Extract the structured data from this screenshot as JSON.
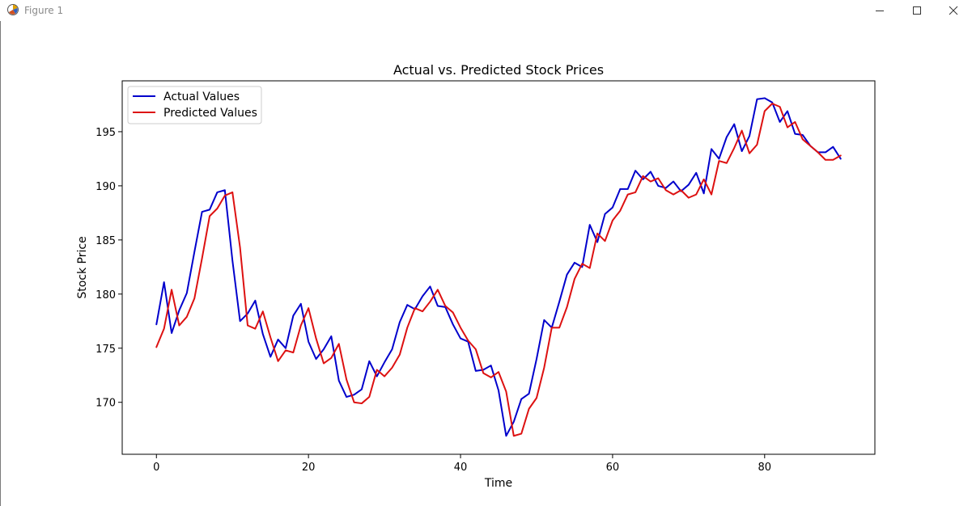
{
  "window": {
    "title": "Figure 1",
    "icons": [
      "matplotlib-icon",
      "minimize-icon",
      "maximize-icon",
      "close-icon"
    ]
  },
  "chart_data": {
    "type": "line",
    "title": "Actual vs. Predicted Stock Prices",
    "xlabel": "Time",
    "ylabel": "Stock Price",
    "xlim": [
      -4.5,
      94.5
    ],
    "ylim": [
      165.2,
      199.7
    ],
    "xticks": [
      0,
      20,
      40,
      60,
      80
    ],
    "yticks": [
      170,
      175,
      180,
      185,
      190,
      195
    ],
    "grid": false,
    "legend_position": "upper-left",
    "x": [
      0,
      1,
      2,
      3,
      4,
      5,
      6,
      7,
      8,
      9,
      10,
      11,
      12,
      13,
      14,
      15,
      16,
      17,
      18,
      19,
      20,
      21,
      22,
      23,
      24,
      25,
      26,
      27,
      28,
      29,
      30,
      31,
      32,
      33,
      34,
      35,
      36,
      37,
      38,
      39,
      40,
      41,
      42,
      43,
      44,
      45,
      46,
      47,
      48,
      49,
      50,
      51,
      52,
      53,
      54,
      55,
      56,
      57,
      58,
      59,
      60,
      61,
      62,
      63,
      64,
      65,
      66,
      67,
      68,
      69,
      70,
      71,
      72,
      73,
      74,
      75,
      76,
      77,
      78,
      79,
      80,
      81,
      82,
      83,
      84,
      85,
      86,
      87,
      88,
      89,
      90
    ],
    "series": [
      {
        "name": "Actual Values",
        "color": "#0000cc",
        "values": [
          177.2,
          181.1,
          176.4,
          178.5,
          180.1,
          183.9,
          187.6,
          187.8,
          189.4,
          189.6,
          183.1,
          177.5,
          178.2,
          179.4,
          176.3,
          174.2,
          175.8,
          175.0,
          178.0,
          179.1,
          175.6,
          174.0,
          174.9,
          176.1,
          172.0,
          170.5,
          170.7,
          171.2,
          173.8,
          172.4,
          173.7,
          174.9,
          177.4,
          179.0,
          178.6,
          179.8,
          180.7,
          178.9,
          178.8,
          177.2,
          175.9,
          175.6,
          172.9,
          173.0,
          173.4,
          171.1,
          166.9,
          168.2,
          170.3,
          170.8,
          174.0,
          177.6,
          176.9,
          179.3,
          181.8,
          182.9,
          182.5,
          186.4,
          184.8,
          187.4,
          188.0,
          189.7,
          189.7,
          191.4,
          190.6,
          191.3,
          190.0,
          189.8,
          190.4,
          189.5,
          190.1,
          191.2,
          189.3,
          193.4,
          192.5,
          194.5,
          195.7,
          193.2,
          194.6,
          198.0,
          198.1,
          197.7,
          195.9,
          196.9,
          194.8,
          194.7,
          193.7,
          193.1,
          193.1,
          193.6,
          192.5
        ]
      },
      {
        "name": "Predicted Values",
        "color": "#dd1111",
        "values": [
          175.1,
          176.8,
          180.4,
          177.1,
          177.9,
          179.6,
          183.3,
          187.2,
          187.9,
          189.1,
          189.4,
          184.3,
          177.1,
          176.8,
          178.4,
          176.0,
          173.8,
          174.8,
          174.6,
          177.1,
          178.7,
          175.9,
          173.6,
          174.1,
          175.4,
          172.1,
          170.0,
          169.9,
          170.5,
          173.0,
          172.4,
          173.2,
          174.4,
          176.9,
          178.7,
          178.4,
          179.3,
          180.4,
          178.9,
          178.3,
          176.9,
          175.7,
          174.9,
          172.7,
          172.3,
          172.8,
          171.0,
          166.9,
          167.1,
          169.4,
          170.4,
          173.2,
          176.9,
          176.9,
          178.8,
          181.4,
          182.8,
          182.4,
          185.6,
          184.9,
          186.8,
          187.7,
          189.2,
          189.4,
          190.9,
          190.4,
          190.7,
          189.6,
          189.2,
          189.6,
          188.9,
          189.2,
          190.6,
          189.2,
          192.3,
          192.1,
          193.5,
          195.1,
          193.0,
          193.8,
          196.9,
          197.6,
          197.3,
          195.4,
          195.9,
          194.3,
          193.7,
          193.1,
          192.4,
          192.4,
          192.8
        ]
      }
    ]
  }
}
